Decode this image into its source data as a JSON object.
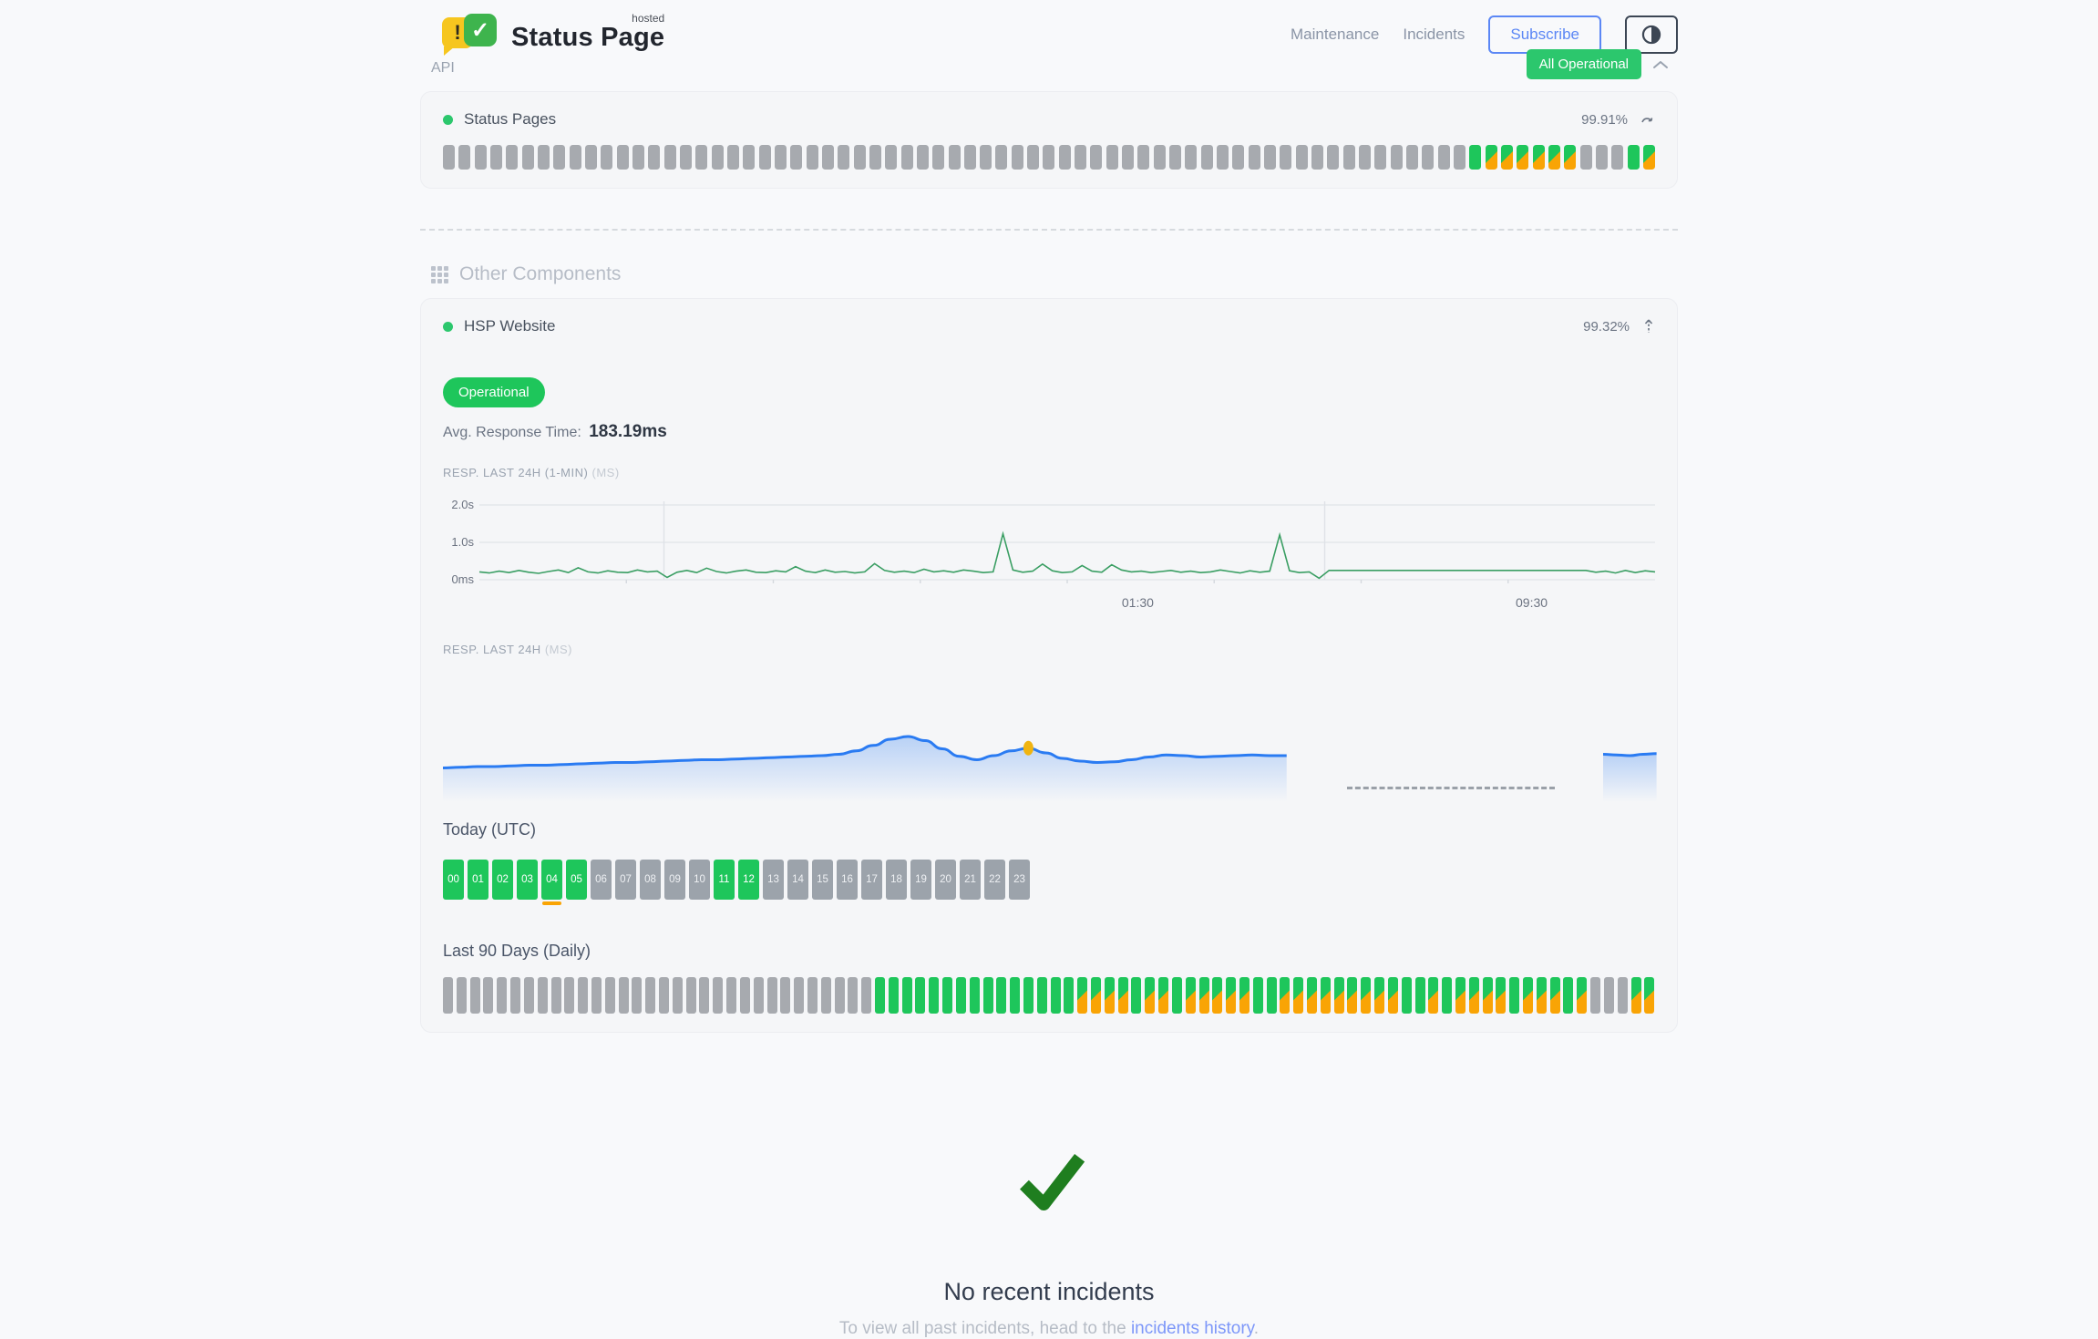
{
  "header": {
    "brand": "Status Page",
    "hosted": "hosted",
    "logo_exclaim": "!",
    "logo_check": "✓",
    "nav": [
      {
        "label": "Maintenance"
      },
      {
        "label": "Incidents"
      }
    ],
    "subscribe_label": "Subscribe",
    "theme_icon": "half-circle-contrast"
  },
  "api_group": {
    "label": "API",
    "status_badge": "All Operational"
  },
  "status_pages": {
    "name": "Status Pages",
    "uptime": "99.91%",
    "bars": "gggggggggggggggggggggggggggggggggggggggggggggggggggggggggggggggggGMMMMMMgggGM"
  },
  "other_components": {
    "title": "Other Components",
    "component": {
      "name": "HSP Website",
      "uptime": "99.32%",
      "status": "Operational",
      "avg_label": "Avg. Response Time:",
      "avg_value": "183.19ms",
      "chart1_label": "RESP. LAST 24H (1-MIN)",
      "chart1_unit": "(MS)",
      "chart2_label": "RESP. LAST 24H",
      "chart2_unit": "(MS)"
    }
  },
  "today": {
    "title": "Today (UTC)",
    "hours": [
      {
        "label": "00",
        "state": "up"
      },
      {
        "label": "01",
        "state": "up"
      },
      {
        "label": "02",
        "state": "up"
      },
      {
        "label": "03",
        "state": "up"
      },
      {
        "label": "04",
        "state": "up",
        "degraded": true
      },
      {
        "label": "05",
        "state": "up"
      },
      {
        "label": "06",
        "state": "nodata"
      },
      {
        "label": "07",
        "state": "nodata"
      },
      {
        "label": "08",
        "state": "nodata"
      },
      {
        "label": "09",
        "state": "nodata"
      },
      {
        "label": "10",
        "state": "nodata"
      },
      {
        "label": "11",
        "state": "up"
      },
      {
        "label": "12",
        "state": "up"
      },
      {
        "label": "13",
        "state": "nodata"
      },
      {
        "label": "14",
        "state": "nodata"
      },
      {
        "label": "15",
        "state": "nodata"
      },
      {
        "label": "16",
        "state": "nodata"
      },
      {
        "label": "17",
        "state": "nodata"
      },
      {
        "label": "18",
        "state": "nodata"
      },
      {
        "label": "19",
        "state": "nodata"
      },
      {
        "label": "20",
        "state": "nodata"
      },
      {
        "label": "21",
        "state": "nodata"
      },
      {
        "label": "22",
        "state": "nodata"
      },
      {
        "label": "23",
        "state": "nodata"
      }
    ]
  },
  "last90": {
    "title": "Last 90 Days (Daily)",
    "bars": "ggggggggggggggggggggggggggggggggGGGGGGGGGGGGGGGMMMMGMMGMMMMMGGMMMMMMMMMGGMGMMMMGMMMGMgggMM"
  },
  "incidents": {
    "check_icon": "green-checkmark",
    "title": "No recent incidents",
    "subtext_prefix": "To view all past incidents, head to the ",
    "link_label": "incidents history",
    "subtext_suffix": "."
  },
  "colors": {
    "up_green": "#1ec65b",
    "badge_green": "#2cc76d",
    "degraded_orange": "#f9a405",
    "nodata_gray": "#a7aaaf",
    "line_green": "#3a9e63",
    "area_blue": "#2a7bf2",
    "marker_yellow": "#f0b411",
    "check_green": "#1f7e1f"
  },
  "chart_data": [
    {
      "type": "line",
      "title": "RESP. LAST 24H (1-MIN) (MS)",
      "ylim": [
        0,
        2000
      ],
      "yticks": [
        {
          "label": "2.0s",
          "value": 2000
        },
        {
          "label": "1.0s",
          "value": 1000
        },
        {
          "label": "0ms",
          "value": 0
        }
      ],
      "xticks": [
        {
          "label": "01:30",
          "pos": 0.56
        },
        {
          "label": "09:30",
          "pos": 0.895
        }
      ],
      "vgrid": [
        0.157,
        0.719
      ],
      "series": [
        {
          "name": "response_ms",
          "values": [
            210,
            180,
            230,
            190,
            250,
            200,
            170,
            220,
            260,
            190,
            320,
            210,
            180,
            240,
            200,
            190,
            260,
            210,
            230,
            60,
            200,
            250,
            190,
            310,
            220,
            180,
            230,
            260,
            200,
            190,
            240,
            210,
            350,
            230,
            190,
            260,
            200,
            220,
            180,
            210,
            430,
            250,
            200,
            230,
            190,
            280,
            210,
            240,
            200,
            260,
            230,
            190,
            210,
            1230,
            260,
            200,
            230,
            420,
            240,
            190,
            210,
            380,
            230,
            200,
            400,
            260,
            210,
            230,
            190,
            220,
            250,
            200,
            230,
            190,
            210,
            260,
            220,
            180,
            240,
            200,
            230,
            1200,
            240,
            190,
            210,
            40,
            250,
            250,
            250,
            250,
            250,
            250,
            250,
            250,
            250,
            250,
            250,
            250,
            250,
            250,
            250,
            250,
            250,
            250,
            250,
            250,
            250,
            250,
            250,
            250,
            250,
            250,
            250,
            200,
            230,
            180,
            250,
            190,
            240,
            210
          ]
        }
      ]
    },
    {
      "type": "area",
      "title": "RESP. LAST 24H (MS)",
      "segments": [
        {
          "span": [
            0,
            0.695
          ],
          "values": [
            150,
            151,
            152,
            152,
            153,
            154,
            154,
            155,
            156,
            157,
            158,
            158,
            159,
            160,
            161,
            162,
            162,
            163,
            164,
            165,
            166,
            167,
            168,
            170,
            175,
            183,
            192,
            196,
            190,
            178,
            167,
            162,
            168,
            175,
            179,
            172,
            164,
            160,
            158,
            159,
            162,
            166,
            169,
            168,
            166,
            167,
            168,
            169,
            168,
            168
          ]
        },
        {
          "span": [
            0.956,
            1.0
          ],
          "values": [
            170,
            169,
            168,
            170,
            171
          ]
        }
      ],
      "gap_dash_span": [
        0.745,
        0.916
      ],
      "marker": {
        "segment": 0,
        "index": 34
      }
    }
  ]
}
